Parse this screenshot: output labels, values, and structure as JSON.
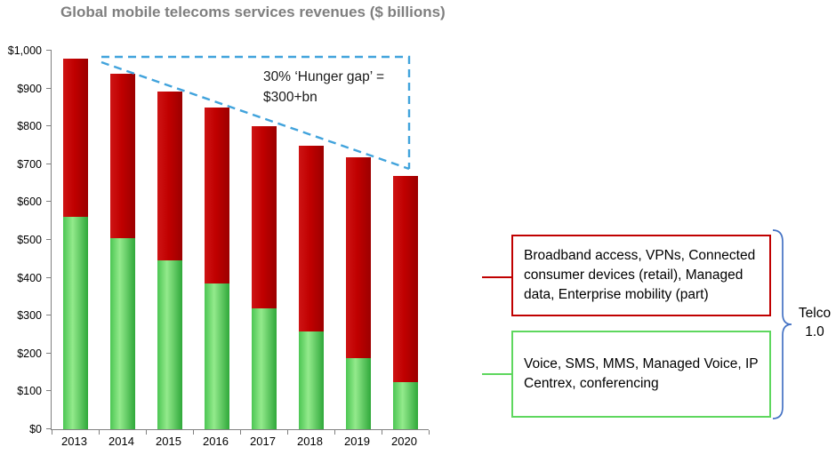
{
  "title": "Global mobile telecoms services revenues ($ billions)",
  "chart_data": {
    "type": "bar",
    "stacked": true,
    "title": "Global mobile telecoms services revenues ($ billions)",
    "categories": [
      "2013",
      "2014",
      "2015",
      "2016",
      "2017",
      "2018",
      "2019",
      "2020"
    ],
    "series": [
      {
        "name": "Voice, SMS, MMS, Managed Voice, IP Centrex, conferencing",
        "color_key": "green",
        "values": [
          560,
          505,
          445,
          385,
          320,
          258,
          188,
          125
        ]
      },
      {
        "name": "Broadband access, VPNs, Connected consumer devices (retail), Managed data, Enterprise mobility (part)",
        "color_key": "red",
        "values": [
          420,
          435,
          448,
          465,
          480,
          490,
          530,
          545
        ]
      }
    ],
    "totals": [
      980,
      940,
      893,
      850,
      800,
      748,
      718,
      670
    ],
    "ylim": [
      0,
      1000
    ],
    "ytick_step": 100,
    "ytick_labels": [
      "$0",
      "$100",
      "$200",
      "$300",
      "$400",
      "$500",
      "$600",
      "$700",
      "$800",
      "$900",
      "$1,000"
    ],
    "grid": false,
    "legend_position": "right-callout-boxes",
    "annotation": "30% ‘Hunger gap’ =\n$300+bn"
  },
  "callouts": {
    "red_box_text": "Broadband access, VPNs, Connected consumer devices (retail), Managed data, Enterprise mobility (part)",
    "green_box_text": "Voice, SMS, MMS, Managed Voice, IP Centrex, conferencing",
    "brace_label_line1": "Telco",
    "brace_label_line2": "1.0"
  },
  "colors": {
    "title_gray": "#7f7f7f",
    "axis_gray": "#808080",
    "bar_red": "#C00000",
    "bar_green": "#4CC653",
    "bar_green_light": "#93EA8C",
    "bar_green_dark": "#2FA83A",
    "green_line": "#5ED75E",
    "dash_blue": "#41A3DC",
    "brace_blue": "#4472C4"
  }
}
